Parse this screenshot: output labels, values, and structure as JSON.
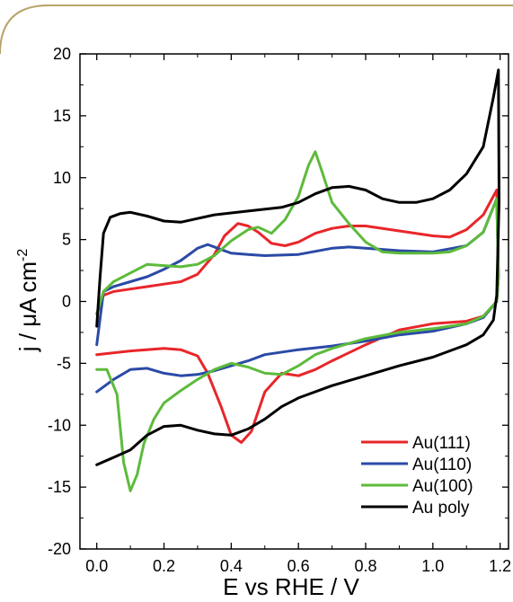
{
  "chart_data": {
    "type": "line",
    "title": "",
    "xlabel": "E vs RHE / V",
    "ylabel_parts": {
      "prefix": "j / ",
      "mu": "μ",
      "unit": "A cm",
      "sup": "-2"
    },
    "xlim": [
      -0.05,
      1.225
    ],
    "ylim": [
      -20,
      20
    ],
    "xticks": [
      0.0,
      0.2,
      0.4,
      0.6,
      0.8,
      1.0,
      1.2
    ],
    "xtick_labels": [
      "0.0",
      "0.2",
      "0.4",
      "0.6",
      "0.8",
      "1.0",
      "1.2"
    ],
    "yticks": [
      -20,
      -15,
      -10,
      -5,
      0,
      5,
      10,
      15,
      20
    ],
    "ytick_labels": [
      "-20",
      "-15",
      "-10",
      "-5",
      "0",
      "5",
      "10",
      "15",
      "20"
    ],
    "grid": false,
    "legend_position": "bottom-right",
    "series": [
      {
        "name": "Au(111)",
        "color": "#e8262a",
        "anodic": [
          [
            0.0,
            -1.0
          ],
          [
            0.02,
            0.5
          ],
          [
            0.05,
            0.8
          ],
          [
            0.1,
            1.0
          ],
          [
            0.15,
            1.2
          ],
          [
            0.2,
            1.4
          ],
          [
            0.25,
            1.6
          ],
          [
            0.3,
            2.2
          ],
          [
            0.35,
            3.8
          ],
          [
            0.38,
            5.3
          ],
          [
            0.42,
            6.3
          ],
          [
            0.45,
            6.1
          ],
          [
            0.48,
            5.6
          ],
          [
            0.52,
            4.7
          ],
          [
            0.56,
            4.5
          ],
          [
            0.6,
            4.8
          ],
          [
            0.65,
            5.5
          ],
          [
            0.7,
            5.9
          ],
          [
            0.75,
            6.1
          ],
          [
            0.8,
            6.1
          ],
          [
            0.9,
            5.7
          ],
          [
            1.0,
            5.3
          ],
          [
            1.05,
            5.2
          ],
          [
            1.1,
            5.8
          ],
          [
            1.15,
            7.0
          ],
          [
            1.19,
            9.0
          ]
        ],
        "cathodic": [
          [
            1.19,
            9.0
          ],
          [
            1.195,
            2.0
          ],
          [
            1.19,
            0.0
          ],
          [
            1.15,
            -1.2
          ],
          [
            1.1,
            -1.6
          ],
          [
            1.0,
            -1.8
          ],
          [
            0.9,
            -2.3
          ],
          [
            0.8,
            -3.5
          ],
          [
            0.7,
            -4.8
          ],
          [
            0.65,
            -5.5
          ],
          [
            0.6,
            -6.0
          ],
          [
            0.55,
            -5.8
          ],
          [
            0.5,
            -7.3
          ],
          [
            0.46,
            -10.5
          ],
          [
            0.43,
            -11.4
          ],
          [
            0.4,
            -10.8
          ],
          [
            0.37,
            -8.5
          ],
          [
            0.33,
            -5.8
          ],
          [
            0.3,
            -4.4
          ],
          [
            0.25,
            -3.9
          ],
          [
            0.2,
            -3.8
          ],
          [
            0.1,
            -4.0
          ],
          [
            0.0,
            -4.3
          ]
        ]
      },
      {
        "name": "Au(110)",
        "color": "#2b4aa6",
        "anodic": [
          [
            0.0,
            -3.5
          ],
          [
            0.02,
            0.8
          ],
          [
            0.05,
            1.2
          ],
          [
            0.1,
            1.6
          ],
          [
            0.15,
            2.0
          ],
          [
            0.2,
            2.6
          ],
          [
            0.25,
            3.3
          ],
          [
            0.3,
            4.3
          ],
          [
            0.33,
            4.6
          ],
          [
            0.36,
            4.3
          ],
          [
            0.4,
            3.9
          ],
          [
            0.45,
            3.8
          ],
          [
            0.5,
            3.7
          ],
          [
            0.6,
            3.8
          ],
          [
            0.7,
            4.3
          ],
          [
            0.75,
            4.4
          ],
          [
            0.8,
            4.3
          ],
          [
            0.9,
            4.1
          ],
          [
            1.0,
            4.0
          ],
          [
            1.1,
            4.5
          ],
          [
            1.15,
            5.6
          ],
          [
            1.19,
            8.3
          ]
        ],
        "cathodic": [
          [
            1.19,
            8.3
          ],
          [
            1.195,
            2.0
          ],
          [
            1.19,
            0.0
          ],
          [
            1.15,
            -1.3
          ],
          [
            1.1,
            -1.8
          ],
          [
            1.0,
            -2.4
          ],
          [
            0.9,
            -2.7
          ],
          [
            0.8,
            -3.2
          ],
          [
            0.7,
            -3.6
          ],
          [
            0.6,
            -3.9
          ],
          [
            0.5,
            -4.3
          ],
          [
            0.45,
            -4.8
          ],
          [
            0.4,
            -5.2
          ],
          [
            0.35,
            -5.6
          ],
          [
            0.3,
            -5.9
          ],
          [
            0.25,
            -6.0
          ],
          [
            0.2,
            -5.8
          ],
          [
            0.15,
            -5.4
          ],
          [
            0.1,
            -5.5
          ],
          [
            0.05,
            -6.3
          ],
          [
            0.0,
            -7.3
          ]
        ]
      },
      {
        "name": "Au(100)",
        "color": "#5dbb3b",
        "anodic": [
          [
            0.0,
            -1.0
          ],
          [
            0.02,
            0.8
          ],
          [
            0.05,
            1.6
          ],
          [
            0.1,
            2.3
          ],
          [
            0.15,
            3.0
          ],
          [
            0.2,
            2.9
          ],
          [
            0.25,
            2.8
          ],
          [
            0.3,
            3.0
          ],
          [
            0.35,
            3.7
          ],
          [
            0.4,
            4.9
          ],
          [
            0.45,
            5.8
          ],
          [
            0.48,
            6.0
          ],
          [
            0.52,
            5.5
          ],
          [
            0.56,
            6.6
          ],
          [
            0.6,
            8.5
          ],
          [
            0.63,
            11.0
          ],
          [
            0.65,
            12.1
          ],
          [
            0.67,
            10.5
          ],
          [
            0.7,
            8.0
          ],
          [
            0.75,
            6.3
          ],
          [
            0.8,
            4.8
          ],
          [
            0.85,
            4.0
          ],
          [
            0.9,
            3.9
          ],
          [
            1.0,
            3.9
          ],
          [
            1.05,
            4.0
          ],
          [
            1.1,
            4.5
          ],
          [
            1.15,
            5.6
          ],
          [
            1.19,
            8.3
          ]
        ],
        "cathodic": [
          [
            1.19,
            8.3
          ],
          [
            1.195,
            2.0
          ],
          [
            1.19,
            0.0
          ],
          [
            1.15,
            -1.2
          ],
          [
            1.1,
            -1.8
          ],
          [
            1.0,
            -2.2
          ],
          [
            0.9,
            -2.5
          ],
          [
            0.8,
            -3.0
          ],
          [
            0.7,
            -3.8
          ],
          [
            0.65,
            -4.3
          ],
          [
            0.6,
            -5.2
          ],
          [
            0.55,
            -5.9
          ],
          [
            0.5,
            -5.8
          ],
          [
            0.45,
            -5.3
          ],
          [
            0.4,
            -5.0
          ],
          [
            0.35,
            -5.5
          ],
          [
            0.3,
            -6.3
          ],
          [
            0.25,
            -7.2
          ],
          [
            0.2,
            -8.2
          ],
          [
            0.17,
            -9.5
          ],
          [
            0.14,
            -11.5
          ],
          [
            0.12,
            -14.0
          ],
          [
            0.1,
            -15.3
          ],
          [
            0.08,
            -13.0
          ],
          [
            0.06,
            -7.5
          ],
          [
            0.03,
            -5.5
          ],
          [
            0.0,
            -5.5
          ]
        ]
      },
      {
        "name": "Au poly",
        "color": "#000000",
        "anodic": [
          [
            0.0,
            -2.0
          ],
          [
            0.01,
            2.0
          ],
          [
            0.02,
            5.5
          ],
          [
            0.04,
            6.8
          ],
          [
            0.07,
            7.1
          ],
          [
            0.1,
            7.2
          ],
          [
            0.15,
            6.9
          ],
          [
            0.2,
            6.5
          ],
          [
            0.25,
            6.4
          ],
          [
            0.3,
            6.7
          ],
          [
            0.35,
            7.0
          ],
          [
            0.45,
            7.3
          ],
          [
            0.55,
            7.6
          ],
          [
            0.6,
            8.0
          ],
          [
            0.65,
            8.7
          ],
          [
            0.7,
            9.2
          ],
          [
            0.75,
            9.3
          ],
          [
            0.8,
            9.0
          ],
          [
            0.85,
            8.3
          ],
          [
            0.9,
            8.0
          ],
          [
            0.95,
            8.0
          ],
          [
            1.0,
            8.3
          ],
          [
            1.05,
            9.0
          ],
          [
            1.1,
            10.3
          ],
          [
            1.15,
            12.5
          ],
          [
            1.18,
            16.5
          ],
          [
            1.195,
            18.7
          ]
        ],
        "cathodic": [
          [
            1.195,
            18.7
          ],
          [
            1.197,
            8.0
          ],
          [
            1.19,
            0.5
          ],
          [
            1.18,
            -1.5
          ],
          [
            1.15,
            -2.7
          ],
          [
            1.1,
            -3.5
          ],
          [
            1.0,
            -4.5
          ],
          [
            0.9,
            -5.2
          ],
          [
            0.8,
            -6.0
          ],
          [
            0.7,
            -6.8
          ],
          [
            0.6,
            -7.8
          ],
          [
            0.55,
            -8.5
          ],
          [
            0.5,
            -9.5
          ],
          [
            0.45,
            -10.3
          ],
          [
            0.4,
            -10.8
          ],
          [
            0.35,
            -10.7
          ],
          [
            0.3,
            -10.4
          ],
          [
            0.25,
            -10.0
          ],
          [
            0.2,
            -10.1
          ],
          [
            0.15,
            -10.8
          ],
          [
            0.1,
            -12.0
          ],
          [
            0.05,
            -12.6
          ],
          [
            0.0,
            -13.2
          ]
        ]
      }
    ]
  }
}
